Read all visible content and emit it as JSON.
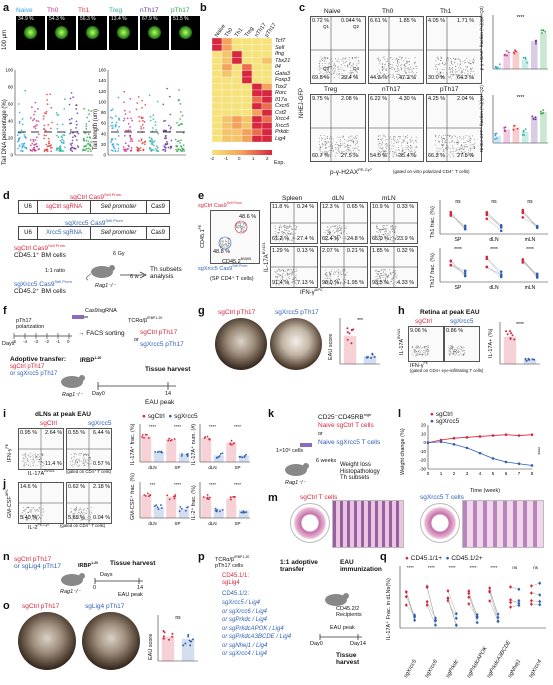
{
  "panels": {
    "a": "a",
    "b": "b",
    "c": "c",
    "d": "d",
    "e": "e",
    "f": "f",
    "g": "g",
    "h": "h",
    "i": "i",
    "j": "j",
    "k": "k",
    "l": "l",
    "m": "m",
    "n": "n",
    "o": "o",
    "p": "p",
    "q": "q"
  },
  "a": {
    "groups": [
      "Naive",
      "Th0",
      "Th1",
      "Treg",
      "nTh17",
      "pTh17"
    ],
    "colors": [
      "#2aa7e0",
      "#c1338d",
      "#e23b3b",
      "#2db5a3",
      "#6a3aa0",
      "#31a84d"
    ],
    "scale": "100 µm",
    "pct": [
      "34.9 %",
      "54.3 %",
      "56.3 %",
      "13.4 %",
      "67.9 %",
      "51.5 %"
    ],
    "y1": "Tail DNA percentage (%)",
    "y2": "Tail length (um)",
    "ticks1": [
      "0",
      "20",
      "40",
      "60",
      "80",
      "100"
    ],
    "ticks2": [
      "0",
      "20",
      "40",
      "60",
      "80",
      "100",
      "120",
      "140",
      "160"
    ]
  },
  "b": {
    "cols": [
      "Naive",
      "Th0",
      "Th1",
      "Treg",
      "nTh17",
      "pTh17"
    ],
    "rows": [
      "Tcf7",
      "Sell",
      "Ifng",
      "Tbx21",
      "Il4",
      "Gata3",
      "Foxp3",
      "Tox2",
      "Rorc",
      "Il17a",
      "Cxcr6",
      "Csf2",
      "Xrcc4",
      "Xrcc5",
      "Prkdc",
      "Lig4"
    ],
    "legend": [
      "-2",
      "-1",
      "0",
      "1",
      "2"
    ],
    "legend_title": "Exp."
  },
  "c": {
    "plots": [
      "Naive",
      "Th0",
      "Th1",
      "Treg",
      "nTh17",
      "pTh17"
    ],
    "q": [
      [
        "0.72 %",
        "0.044 %",
        "69.8 %",
        "29.4 %"
      ],
      [
        "6.61 %",
        "1.85 %",
        "44.3 %",
        "47.2 %"
      ],
      [
        "4.05 %",
        "1.71 %",
        "30.0 %",
        "64.2 %"
      ],
      [
        "9.75 %",
        "2.08 %",
        "60.7 %",
        "27.5 %"
      ],
      [
        "6.22 %",
        "4.30 %",
        "54.0 %",
        "35.4 %"
      ],
      [
        "4.25 %",
        "2.04 %",
        "66.2 %",
        "27.5 %"
      ]
    ],
    "q_labels": [
      "Q1",
      "Q2",
      "Q3",
      "Q4"
    ],
    "ylabel": "NHEJ-GFP",
    "xlabel": "p-γ-H2AX",
    "xlabel_sup": "PE-Cy7",
    "note": "(gated on vitro polarized CD4⁺ T cells)",
    "bar_y1": "p-γ-H2AX⁺ fraction (%)(Q2+Q3)",
    "bar_y2": "NHEJ-GFP⁺ fraction (%)(Q1+Q2)",
    "sig": "****"
  },
  "d": {
    "c1": "U6",
    "c2": "sgCtrl",
    "c2b": "sgRNA",
    "c3": "Sell promoter",
    "c4": "Cas9",
    "c5": "U6",
    "c6": "Xrcc5",
    "c6b": "sgRNA",
    "c7": "Sell promoter",
    "c8": "Cas9",
    "t1": "sgCtrl Cas9",
    "t1sup": "Sell Prom",
    "t2": "sgXrcc5 Cas9",
    "t2sup": "Sell Prom",
    "t3": "sgCtrl Cas9",
    "t3sup": "Sell Prom",
    "t3b": "CD45.1⁺ BM cells",
    "t4": "sgXrcc5 Cas9",
    "t4sup": "Sell Prom",
    "t4b": "CD45.2⁺ BM cells",
    "ratio": "1:1 ratio",
    "gy": "6 Gy",
    "wk": "6 w",
    "mouse": "Rag1⁻/⁻",
    "out": "Th subsets",
    "out2": "analysis"
  },
  "e": {
    "left_top": "sgCtrl Cas9",
    "left_top_sup": "Sell Prom",
    "left_pct1": "48.6 %",
    "left_pct2": "48.8 %",
    "left_bot": "sgXrcc5 Cas9",
    "left_bot_sup": "Sell Prom",
    "ly": "CD45.1",
    "ly_sup": "PE",
    "lx": "CD45.2",
    "lx_sup": "BV605",
    "sp": "(SP CD4⁺ T cells)",
    "cols": [
      "Spleen",
      "dLN",
      "mLN"
    ],
    "row1": [
      [
        "11.8 %",
        "0.24 %",
        "61.2 %",
        "27.4 %"
      ],
      [
        "12.3 %",
        "0.65 %",
        "62.4 %",
        "24.8 %"
      ],
      [
        "10.9 %",
        "0.33 %",
        "65.0 %",
        "23.9 %"
      ]
    ],
    "row2": [
      [
        "1.29 %",
        "0.13 %",
        "91.4 %",
        "7.13 %"
      ],
      [
        "2.07 %",
        "0.21 %",
        "96.0 %",
        "1.95 %"
      ],
      [
        "1.85 %",
        "0.32 %",
        "93.5 %",
        "4.33 %"
      ]
    ],
    "y": "IL-17A",
    "y_sup": "BV421",
    "x": "IFN-γ",
    "x_sup": "APC",
    "right_y1": "Th1 frac. (%)",
    "right_y2": "Th17 frac. (%)",
    "xt": [
      "SP",
      "dLN",
      "mLN"
    ],
    "ns": "ns",
    "sig": "****"
  },
  "f": {
    "a": "pTh17",
    "a2": "polarization",
    "days": [
      "-5",
      "-4",
      "-3",
      "-2",
      "-1",
      "0"
    ],
    "days_lbl": "Days",
    "lv": "Cas9/sgRNA",
    "facs": "→ FACS sorting",
    "tcr": "TCRα/β",
    "tcr_sup": "IRBP1-20",
    "or": "or",
    "sgc": "sgCtrl pTh17",
    "sgx": "sgXrcc5 pTh17",
    "adop": "Adoptive transfer:",
    "adop1": "sgCtrl pTh17",
    "adop2": "or sgXrcc5 pTh17",
    "irbp": "IRBP",
    "irbp_sup": "1-20",
    "mouse": "Rag1⁻/⁻",
    "day0": "Day0",
    "d14": "14",
    "th": "Tissue harvest",
    "eau": "EAU peak"
  },
  "g": {
    "t1": "sgCtrl pTh17",
    "t2": "sgXrcc5 pTh17",
    "y": "EAU score",
    "sig": "***",
    "ticks": [
      "0",
      "1",
      "2",
      "3",
      "4"
    ]
  },
  "h": {
    "title": "Retina at peak EAU",
    "t1": "sgCtrl",
    "t2": "sgXrcc5",
    "p1": "9.06 %",
    "p2": "0.86 %",
    "y": "IL-17A",
    "y_sup": "BV421",
    "x": "IFN-γ",
    "x_sup": "PE",
    "note": "(gated on CD4+ eye-infiltrating T cells)",
    "by": "IL-17A+ (%)",
    "sig": "****"
  },
  "i": {
    "title": "dLNs at peak EAU",
    "t1": "sgCtrl",
    "t2": "sgXrcc5",
    "q1": [
      "0.95 %",
      "2.64 %",
      "11.4 %"
    ],
    "q2": [
      "0.55 %",
      "6.44 %",
      "0.57 %"
    ],
    "y": "IFN-γ",
    "y_sup": "PE",
    "x": "IL-17A",
    "x_sup": "BV421",
    "note": "(gated on CD4⁺ T cells)",
    "leg1": "sgCtrl",
    "leg2": "sgXrcc5",
    "by1": "IL-17A⁺ frac. (%)",
    "by2": "IL-17A⁺ num. (#)",
    "xt": [
      "dLN",
      "SP",
      "dLN",
      "SP"
    ],
    "sig": "****"
  },
  "j": {
    "q1": [
      "14.6 %",
      "5.40 %"
    ],
    "q2": [
      "0.62 %",
      "2.18 %",
      "5.69 %",
      "0.04 %"
    ],
    "y": "GM-CSF",
    "y_sup": "APC",
    "x": "IL-2",
    "x_sup": "PE-Cy7",
    "note": "(gated on CD4⁺ T cells)",
    "by1": "GM-CSF⁺ frac. (%)",
    "by2": "IL-2⁺ frac. (%)",
    "xt": [
      "dLN",
      "SP",
      "dLN",
      "SP"
    ],
    "sig": "****",
    "sig2": "***"
  },
  "k": {
    "h": "CD25⁻CD45RB",
    "h_sup": "high",
    "a": "Naive sgCtrl T cells",
    "or": "or",
    "b": "Naive sgXrcc5 T cells",
    "cells": "1×10⁶ cells",
    "mouse": "Rag1⁻/⁻",
    "wk": "6 weeks",
    "o1": "Weight loss",
    "o2": "Histopathology",
    "o3": "Th subsets"
  },
  "l": {
    "leg1": "sgCtrl",
    "leg2": "sgXrcc5",
    "y": "Weight change (%)",
    "x": "Time (week)",
    "xt": [
      "0",
      "1",
      "2",
      "3",
      "4",
      "5",
      "6",
      "7",
      "8"
    ],
    "yt": [
      "-30",
      "-20",
      "-10",
      "0",
      "10",
      "20"
    ],
    "sig": "****"
  },
  "m": {
    "t1": "sgCtrl T cells",
    "t2": "sgXrcc5 T cells"
  },
  "n": {
    "a": "sgCtrl pTh17",
    "b": "or sgLig4 pTh17",
    "irbp": "IRBP",
    "irbp_sup": "1-20",
    "mouse": "Rag1⁻/⁻",
    "th": "Tissue harvest",
    "d0": "0",
    "days": "Days",
    "d14": "14",
    "eau": "EAU peak"
  },
  "o": {
    "t1": "sgCtrl pTh17",
    "t2": "sgLig4 pTh17",
    "y": "EAU score",
    "ns": "ns"
  },
  "p": {
    "tcr": "TCRα/β",
    "tcr_sup": "IRBP1-20",
    "tcr2": "pTh17 cells",
    "c1": "CD45.1/1:",
    "c1b": "sgLig4",
    "c2": "CD45.1/2:",
    "list": [
      "sgXrcc5 / Lig4",
      "or sgXrcc6 / Lig4",
      "or sgPrkdc / Lig4",
      "or sgPrkdcAPOK / Lig4",
      "or sgPrkdcA3BCDE / Lig4",
      "or sgNhej1 / Lig4",
      "or sgXrcc4 / Lig4"
    ],
    "adop": "1:1 adoptive",
    "adop2": "transfer",
    "im": "EAU",
    "im2": "immunization",
    "rec": "CD45.2/2",
    "rec2": "Recipients",
    "peak": "EAU peak",
    "d0": "Day0",
    "d14": "Day14",
    "th": "Tissue",
    "th2": "harvest"
  },
  "q": {
    "leg1": "CD45.1/1+",
    "leg2": "CD45.1/2+",
    "y": "IL-17A⁺ Frac. in dLNs(%)",
    "xt": [
      "sgXrcc5",
      "sgXrcc6",
      "sgPrkdc",
      "sgPrkdcAPOK",
      "sgPrkdcA3BCDE",
      "sgNhej1",
      "sgXrcc4"
    ],
    "sig": "****",
    "ns": "ns"
  }
}
